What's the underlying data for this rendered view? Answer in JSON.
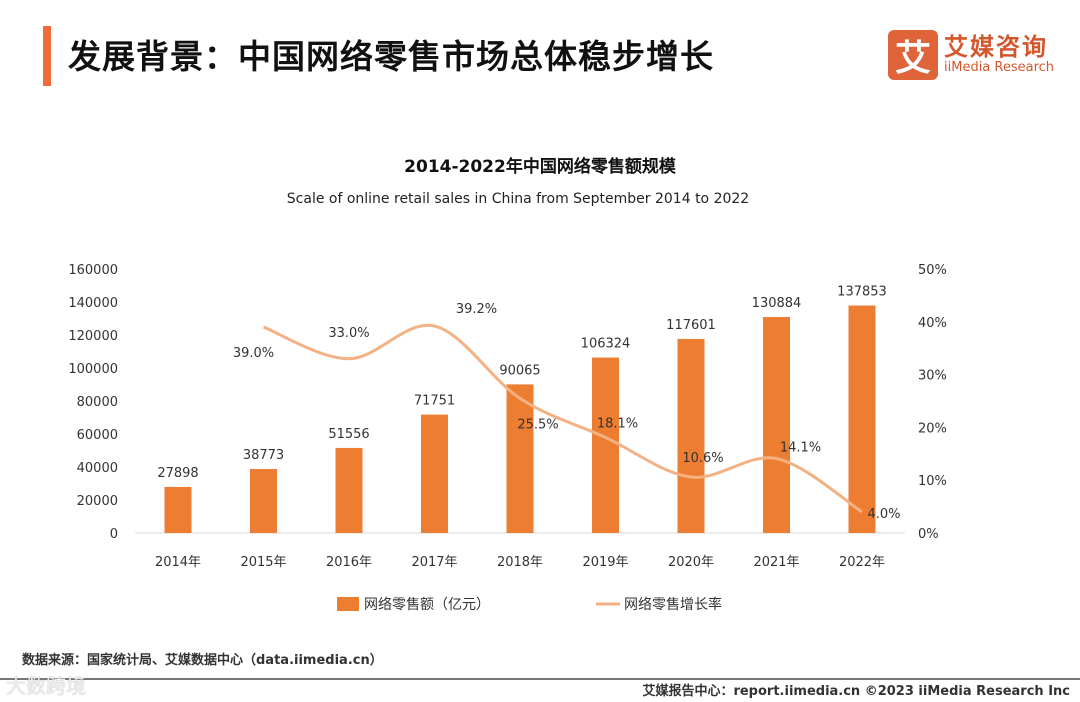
{
  "header": {
    "title": "发展背景：中国网络零售市场总体稳步增长"
  },
  "logo": {
    "icon_char": "艾",
    "cn": "艾媒咨询",
    "en": "iiMedia Research"
  },
  "chart_data": {
    "type": "bar+line",
    "title": "2014-2022年中国网络零售额规模",
    "subtitle": "Scale of online retail sales in China from September 2014 to 2022",
    "categories": [
      "2014年",
      "2015年",
      "2016年",
      "2017年",
      "2018年",
      "2019年",
      "2020年",
      "2021年",
      "2022年"
    ],
    "series": [
      {
        "name": "网络零售额（亿元）",
        "type": "bar",
        "axis": "left",
        "color": "#ed7d31",
        "values": [
          27898,
          38773,
          51556,
          71751,
          90065,
          106324,
          117601,
          130884,
          137853
        ]
      },
      {
        "name": "网络零售增长率",
        "type": "line",
        "axis": "right",
        "color": "#f4b183",
        "values": [
          null,
          39.0,
          33.0,
          39.2,
          25.5,
          18.1,
          10.6,
          14.1,
          4.0
        ],
        "labels": [
          "",
          "39.0%",
          "33.0%",
          "39.2%",
          "25.5%",
          "18.1%",
          "10.6%",
          "14.1%",
          "4.0%"
        ]
      }
    ],
    "ylim_left": [
      0,
      160000
    ],
    "yticks_left": [
      "0",
      "20000",
      "40000",
      "60000",
      "80000",
      "100000",
      "120000",
      "140000",
      "160000"
    ],
    "ylim_right": [
      0,
      50
    ],
    "yticks_right": [
      "0%",
      "10%",
      "20%",
      "30%",
      "40%",
      "50%"
    ],
    "legend": "bottom",
    "grid": false
  },
  "source": "数据来源：国家统计局、艾媒数据中心（data.iimedia.cn）",
  "watermark": "大数跨境",
  "footer": "艾媒报告中心：report.iimedia.cn   ©2023  iiMedia Research  Inc"
}
